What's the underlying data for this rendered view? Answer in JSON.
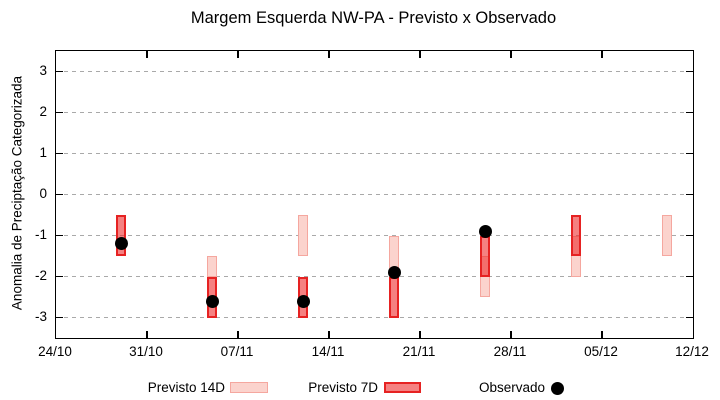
{
  "chart_data": {
    "type": "bar",
    "subtype": "range_bars_with_scatter",
    "title": "Margem Esquerda NW-PA - Previsto x Observado",
    "ylabel": "Anomalia de Preciptação Categorizada",
    "xlabel": "",
    "ylim": [
      -3.5,
      3.5
    ],
    "yticks": [
      3,
      2,
      1,
      0,
      -1,
      -2,
      -3
    ],
    "xtick_labels": [
      "24/10",
      "31/10",
      "07/11",
      "14/11",
      "21/11",
      "28/11",
      "05/12",
      "12/12"
    ],
    "xtick_days": [
      0,
      7,
      14,
      21,
      28,
      35,
      42,
      49
    ],
    "x_axis_span_days": 49,
    "grid": "dashed horizontal at each y tick",
    "legend_position": "bottom",
    "colors": {
      "forecast_14d_fill": "#fbd3cd",
      "forecast_14d_outline": "#f5a79f",
      "forecast_7d_fill": "rgba(238,45,45,0.6)",
      "forecast_7d_outline": "#e62222",
      "observed": "#000000"
    },
    "series": [
      {
        "name": "Previsto 14D",
        "type": "range_bar",
        "points": [
          {
            "date": "05/11",
            "day": 12,
            "from": -1.5,
            "to": -2.0
          },
          {
            "date": "12/11",
            "day": 19,
            "from": -0.5,
            "to": -1.5
          },
          {
            "date": "19/11",
            "day": 26,
            "from": -1.0,
            "to": -2.0
          },
          {
            "date": "26/11",
            "day": 33,
            "from": -1.5,
            "to": -2.5
          },
          {
            "date": "03/12",
            "day": 40,
            "from": -1.0,
            "to": -2.0
          },
          {
            "date": "10/12",
            "day": 47,
            "from": -0.5,
            "to": -1.5
          }
        ]
      },
      {
        "name": "Previsto 7D",
        "type": "range_bar",
        "points": [
          {
            "date": "29/10",
            "day": 5,
            "from": -0.5,
            "to": -1.5
          },
          {
            "date": "05/11",
            "day": 12,
            "from": -2.0,
            "to": -3.0
          },
          {
            "date": "12/11",
            "day": 19,
            "from": -2.0,
            "to": -3.0
          },
          {
            "date": "19/11",
            "day": 26,
            "from": -2.0,
            "to": -3.0
          },
          {
            "date": "26/11",
            "day": 33,
            "from": -1.0,
            "to": -2.0
          },
          {
            "date": "03/12",
            "day": 40,
            "from": -0.5,
            "to": -1.5
          }
        ]
      },
      {
        "name": "Observado",
        "type": "scatter",
        "points": [
          {
            "date": "29/10",
            "day": 5,
            "value": -1.2
          },
          {
            "date": "05/11",
            "day": 12,
            "value": -2.6
          },
          {
            "date": "12/11",
            "day": 19,
            "value": -2.6
          },
          {
            "date": "19/11",
            "day": 26,
            "value": -1.9
          },
          {
            "date": "26/11",
            "day": 33,
            "value": -0.9
          }
        ]
      }
    ]
  }
}
